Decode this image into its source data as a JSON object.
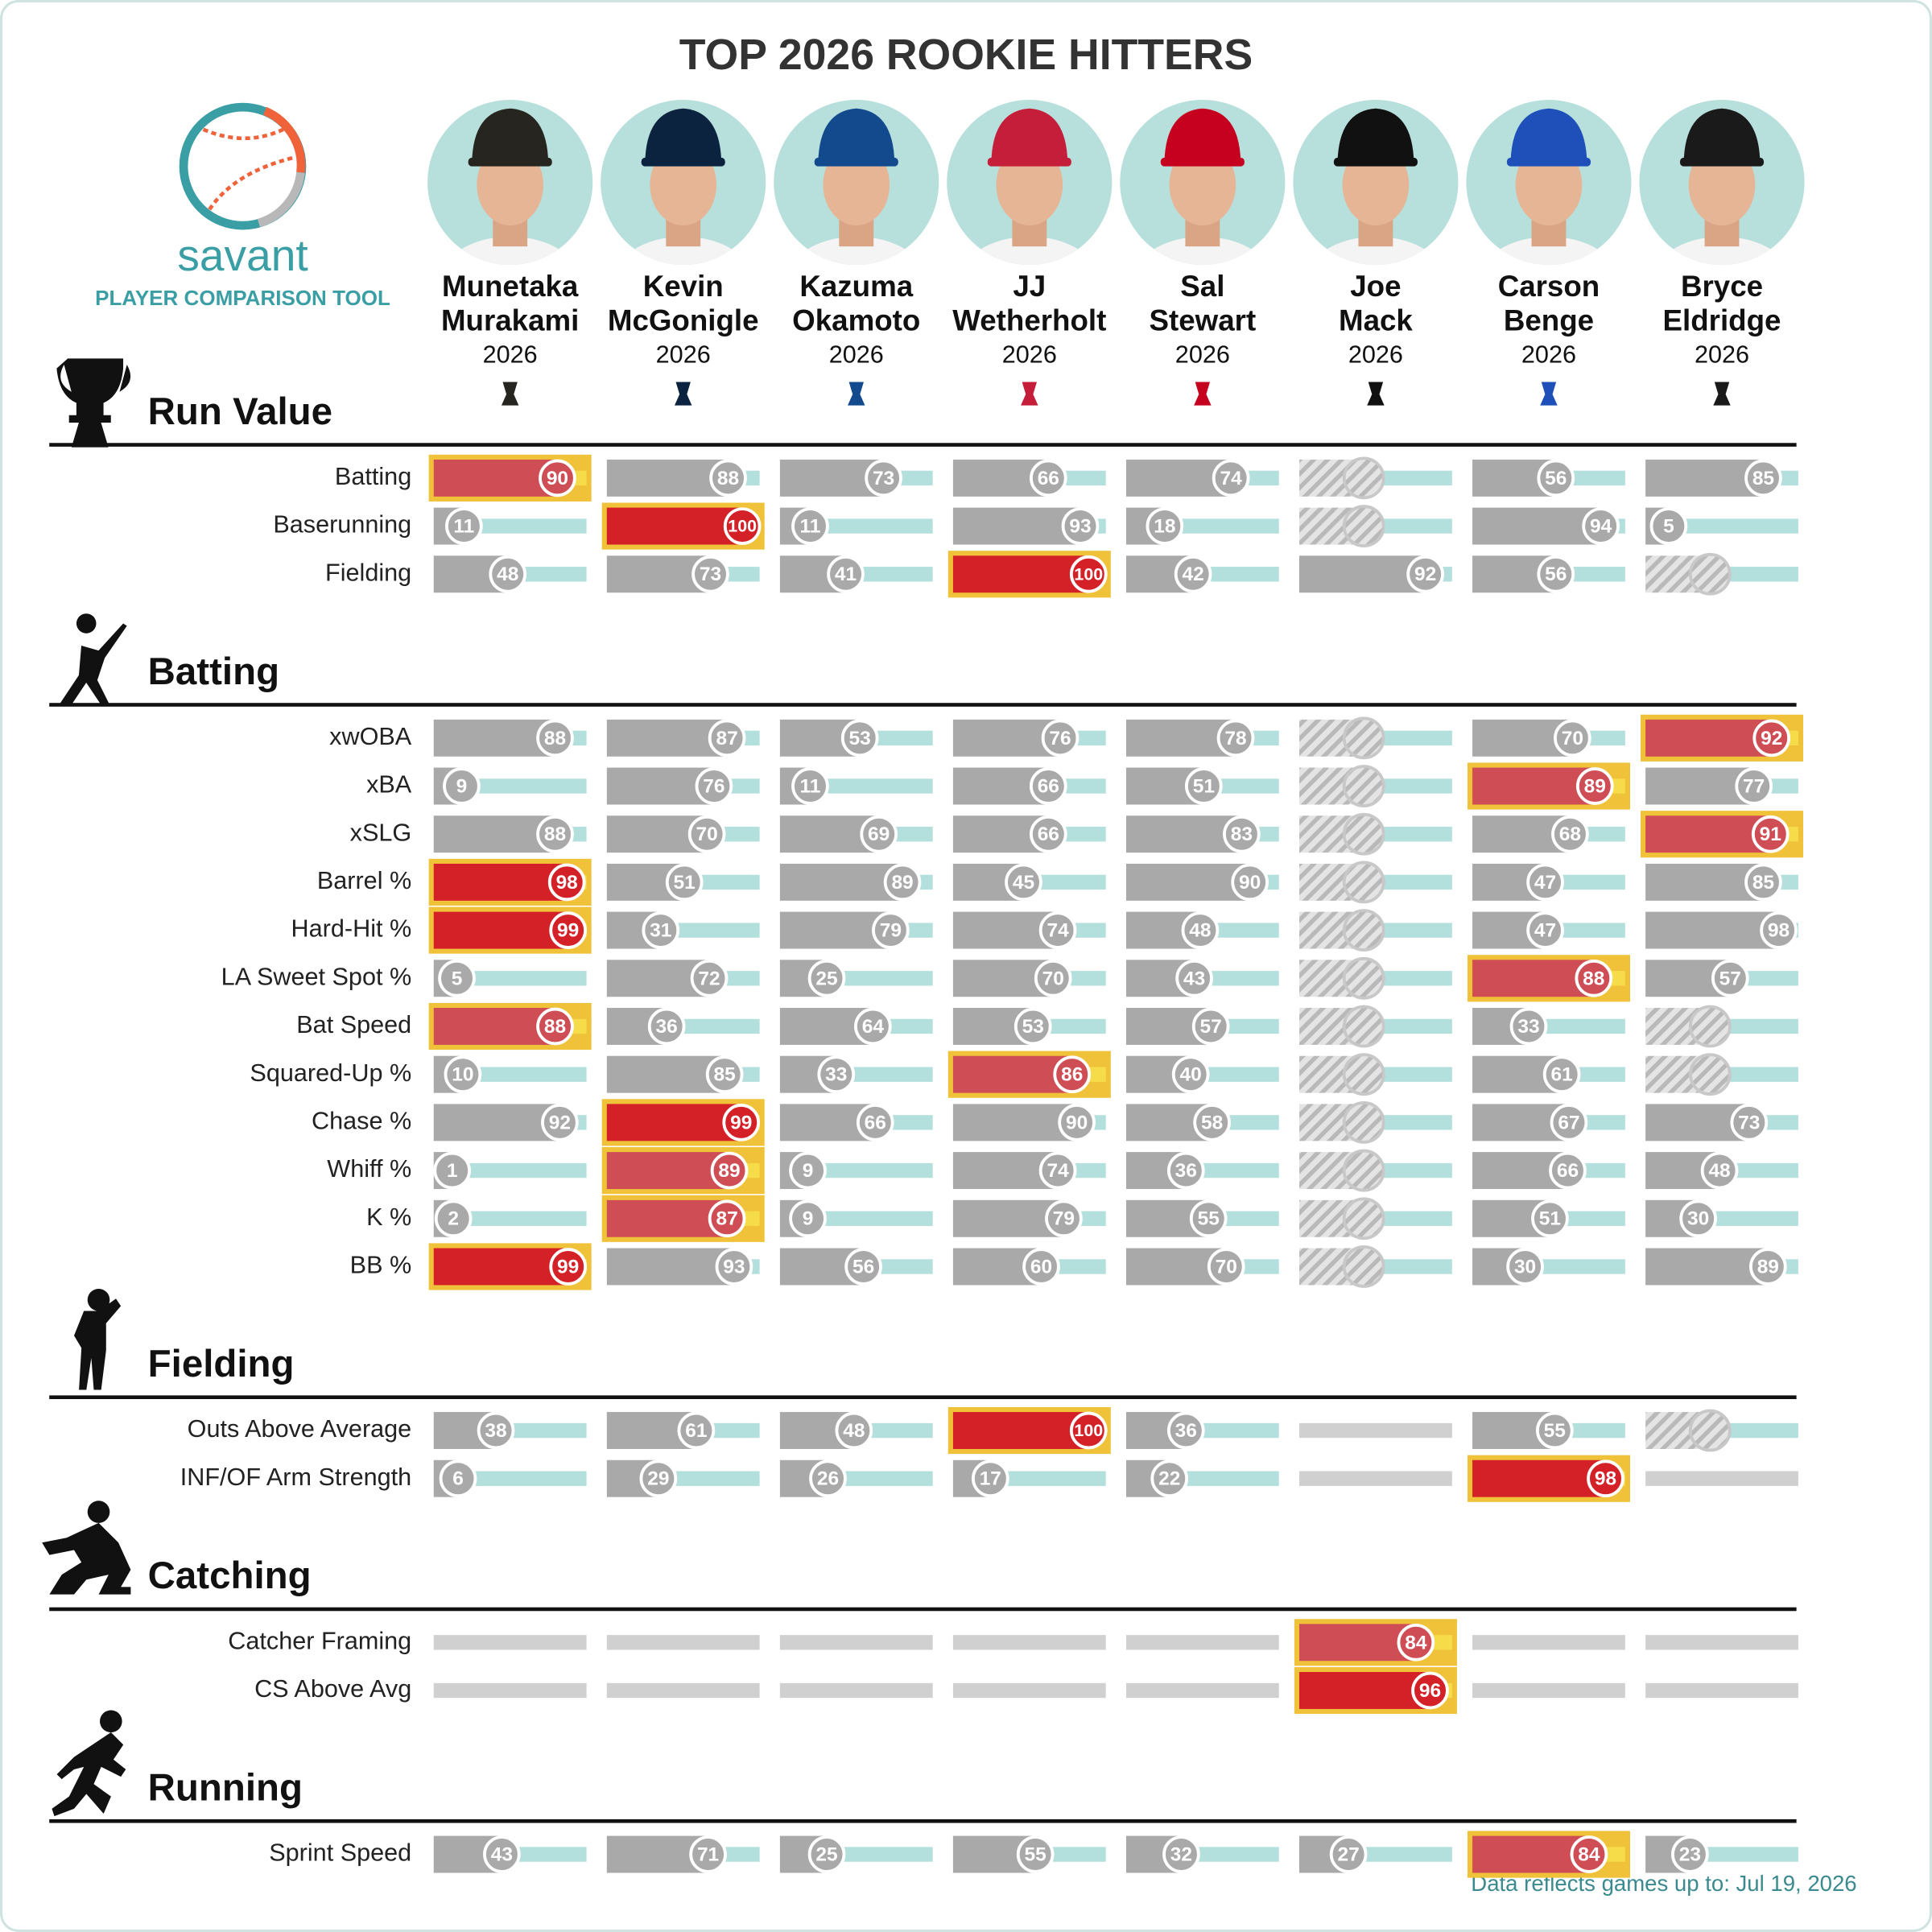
{
  "title": "TOP 2026 ROOKIE HITTERS",
  "logo": {
    "name": "savant",
    "subtitle": "PLAYER COMPARISON TOOL"
  },
  "players": [
    {
      "first": "Munetaka",
      "last": "Murakami",
      "year": "2026",
      "color": "#27251f"
    },
    {
      "first": "Kevin",
      "last": "McGonigle",
      "year": "2026",
      "color": "#0c2340"
    },
    {
      "first": "Kazuma",
      "last": "Okamoto",
      "year": "2026",
      "color": "#134a8e"
    },
    {
      "first": "JJ",
      "last": "Wetherholt",
      "year": "2026",
      "color": "#c41e3a"
    },
    {
      "first": "Sal",
      "last": "Stewart",
      "year": "2026",
      "color": "#c6011f"
    },
    {
      "first": "Joe",
      "last": "Mack",
      "year": "2026",
      "color": "#111111"
    },
    {
      "first": "Carson",
      "last": "Benge",
      "year": "2026",
      "color": "#1f4fb8"
    },
    {
      "first": "Bryce",
      "last": "Eldridge",
      "year": "2026",
      "color": "#1a1a1a"
    }
  ],
  "sections": [
    {
      "name": "Run Value",
      "rows": [
        {
          "label": "Batting",
          "values": [
            90,
            88,
            73,
            66,
            74,
            null,
            56,
            85
          ],
          "hatched": [
            5
          ]
        },
        {
          "label": "Baserunning",
          "values": [
            11,
            100,
            11,
            93,
            18,
            null,
            94,
            5
          ],
          "hatched": [
            5
          ]
        },
        {
          "label": "Fielding",
          "values": [
            48,
            73,
            41,
            100,
            42,
            92,
            56,
            null
          ],
          "hatched": [
            7
          ]
        }
      ]
    },
    {
      "name": "Batting",
      "rows": [
        {
          "label": "xwOBA",
          "values": [
            88,
            87,
            53,
            76,
            78,
            null,
            70,
            92
          ],
          "hatched": [
            5
          ]
        },
        {
          "label": "xBA",
          "values": [
            9,
            76,
            11,
            66,
            51,
            null,
            89,
            77
          ],
          "hatched": [
            5
          ]
        },
        {
          "label": "xSLG",
          "values": [
            88,
            70,
            69,
            66,
            83,
            null,
            68,
            91
          ],
          "hatched": [
            5
          ]
        },
        {
          "label": "Barrel %",
          "values": [
            98,
            51,
            89,
            45,
            90,
            null,
            47,
            85
          ],
          "hatched": [
            5
          ]
        },
        {
          "label": "Hard-Hit %",
          "values": [
            99,
            31,
            79,
            74,
            48,
            null,
            47,
            98
          ],
          "hatched": [
            5
          ]
        },
        {
          "label": "LA Sweet Spot %",
          "values": [
            5,
            72,
            25,
            70,
            43,
            null,
            88,
            57
          ],
          "hatched": [
            5
          ]
        },
        {
          "label": "Bat Speed",
          "values": [
            88,
            36,
            64,
            53,
            57,
            null,
            33,
            null
          ],
          "hatched": [
            5,
            7
          ]
        },
        {
          "label": "Squared-Up %",
          "values": [
            10,
            85,
            33,
            86,
            40,
            null,
            61,
            null
          ],
          "hatched": [
            5,
            7
          ]
        },
        {
          "label": "Chase %",
          "values": [
            92,
            99,
            66,
            90,
            58,
            null,
            67,
            73
          ],
          "hatched": [
            5
          ]
        },
        {
          "label": "Whiff %",
          "values": [
            1,
            89,
            9,
            74,
            36,
            null,
            66,
            48
          ],
          "hatched": [
            5
          ]
        },
        {
          "label": "K %",
          "values": [
            2,
            87,
            9,
            79,
            55,
            null,
            51,
            30
          ],
          "hatched": [
            5
          ]
        },
        {
          "label": "BB %",
          "values": [
            99,
            93,
            56,
            60,
            70,
            null,
            30,
            89
          ],
          "hatched": [
            5
          ]
        }
      ]
    },
    {
      "name": "Fielding",
      "rows": [
        {
          "label": "Outs Above Average",
          "values": [
            38,
            61,
            48,
            100,
            36,
            null,
            55,
            null
          ],
          "hatched": [
            7
          ]
        },
        {
          "label": "INF/OF Arm Strength",
          "values": [
            6,
            29,
            26,
            17,
            22,
            null,
            98,
            null
          ]
        }
      ]
    },
    {
      "name": "Catching",
      "rows": [
        {
          "label": "Catcher Framing",
          "values": [
            null,
            null,
            null,
            null,
            null,
            84,
            null,
            null
          ]
        },
        {
          "label": "CS Above Avg",
          "values": [
            null,
            null,
            null,
            null,
            null,
            96,
            null,
            null
          ]
        }
      ]
    },
    {
      "name": "Running",
      "rows": [
        {
          "label": "Sprint Speed",
          "values": [
            43,
            71,
            25,
            55,
            32,
            27,
            84,
            23
          ]
        }
      ]
    }
  ],
  "footer": "Data reflects games up to: Jul 19, 2026"
}
